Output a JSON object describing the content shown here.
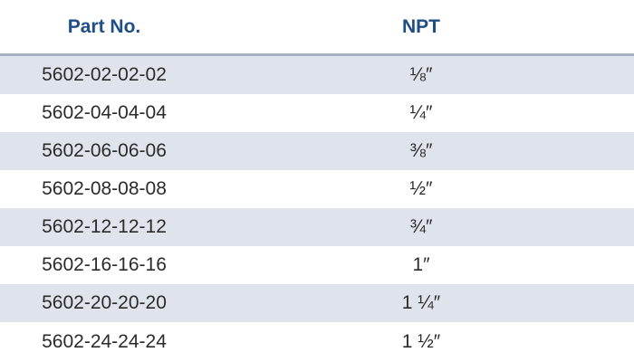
{
  "table": {
    "headers": [
      "Part No.",
      "NPT"
    ],
    "rows": [
      {
        "part_no": "5602-02-02-02",
        "npt": "⅛″"
      },
      {
        "part_no": "5602-04-04-04",
        "npt": "¼″"
      },
      {
        "part_no": "5602-06-06-06",
        "npt": "⅜″"
      },
      {
        "part_no": "5602-08-08-08",
        "npt": "½″"
      },
      {
        "part_no": "5602-12-12-12",
        "npt": "¾″"
      },
      {
        "part_no": "5602-16-16-16",
        "npt": "1″"
      },
      {
        "part_no": "5602-20-20-20",
        "npt": "1 ¼″"
      },
      {
        "part_no": "5602-24-24-24",
        "npt": "1 ½″"
      }
    ]
  },
  "colors": {
    "header_text": "#1f4e86",
    "row_shade": "#dfe3ec",
    "header_rule": "#a7b3c3",
    "body_text": "#2b2b2b"
  }
}
